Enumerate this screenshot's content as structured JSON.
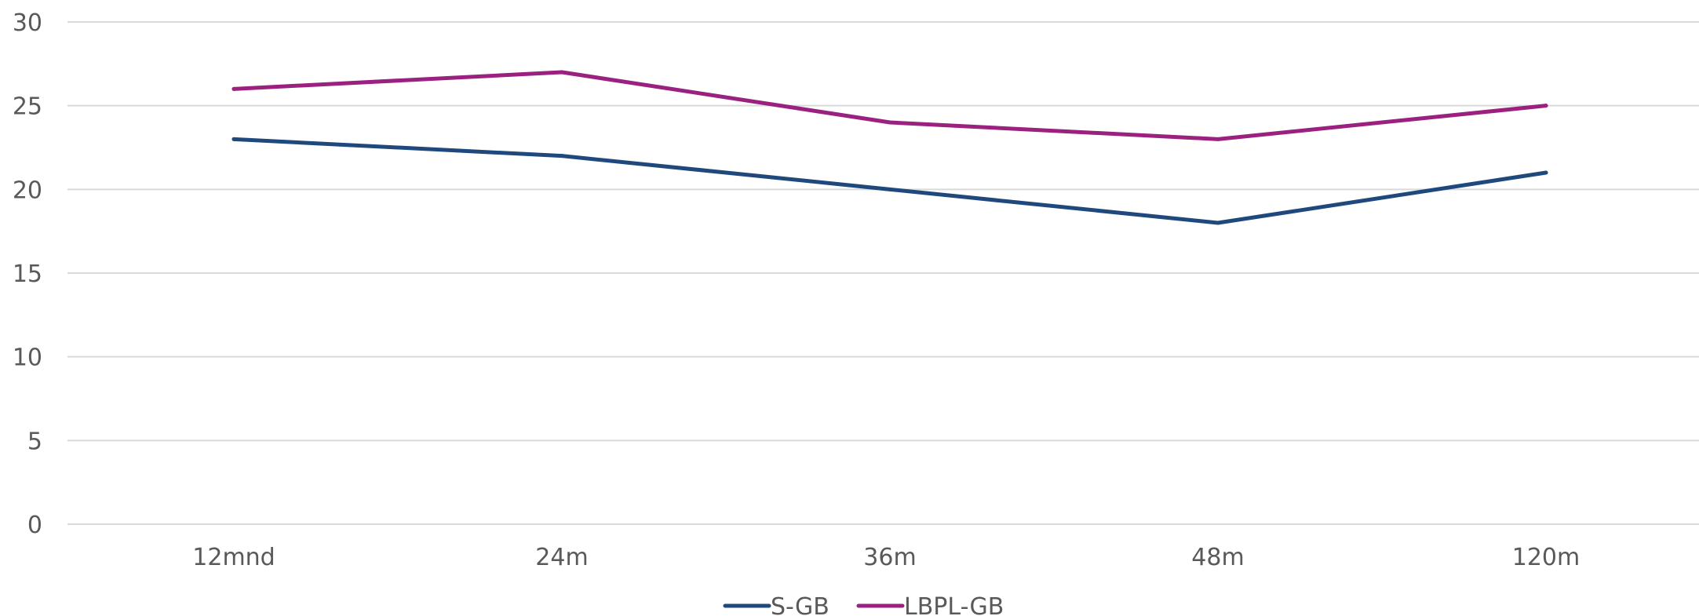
{
  "chart_data": {
    "type": "line",
    "title": "",
    "xlabel": "",
    "ylabel": "",
    "categories": [
      "12mnd",
      "24m",
      "36m",
      "48m",
      "120m"
    ],
    "ylim": [
      0,
      30
    ],
    "yticks": [
      0,
      5,
      10,
      15,
      20,
      25,
      30
    ],
    "grid": true,
    "legend_position": "bottom",
    "series": [
      {
        "name": "S-GB",
        "color": "#1F497D",
        "values": [
          23,
          22,
          20,
          18,
          21
        ]
      },
      {
        "name": "LBPL-GB",
        "color": "#9B2180",
        "values": [
          26,
          27,
          24,
          23,
          25
        ]
      }
    ]
  }
}
